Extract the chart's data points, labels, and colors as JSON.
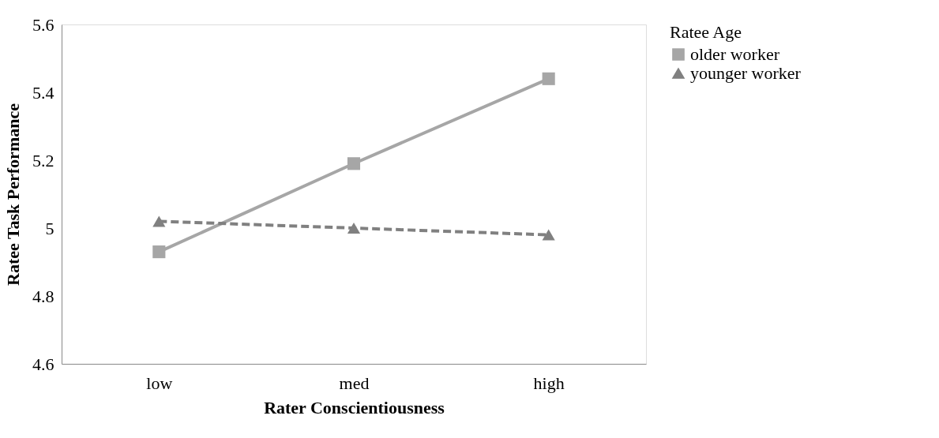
{
  "chart_data": {
    "type": "line",
    "xlabel": "Rater Conscientiousness",
    "ylabel": "Ratee Task Performance",
    "legend_title": "Ratee Age",
    "categories": [
      "low",
      "med",
      "high"
    ],
    "series": [
      {
        "name": "older worker",
        "color": "#a6a6a6",
        "values": [
          4.93,
          5.19,
          5.44
        ],
        "marker": "square",
        "line_style": "solid"
      },
      {
        "name": "younger worker",
        "color": "#808080",
        "values": [
          5.02,
          5.0,
          4.98
        ],
        "marker": "triangle",
        "line_style": "dashed"
      }
    ],
    "ylim": [
      4.6,
      5.6
    ],
    "yticks": [
      4.6,
      4.8,
      5,
      5.2,
      5.4,
      5.6
    ],
    "grid": false,
    "legend": "right"
  }
}
